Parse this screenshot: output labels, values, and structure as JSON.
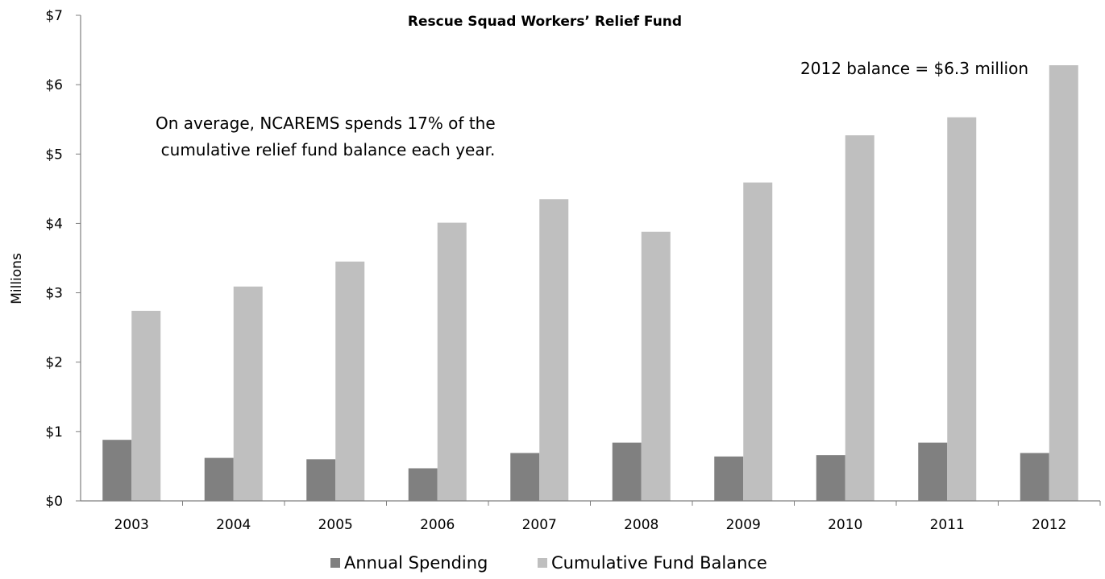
{
  "chart_data": {
    "type": "bar",
    "title": "Rescue Squad Workers’ Relief Fund",
    "xlabel": "",
    "ylabel": "Millions",
    "ylim": [
      0,
      7
    ],
    "y_tick_values": [
      0,
      1,
      2,
      3,
      4,
      5,
      6,
      7
    ],
    "y_tick_labels": [
      "$0",
      "$1",
      "$2",
      "$3",
      "$4",
      "$5",
      "$6",
      "$7"
    ],
    "categories": [
      "2003",
      "2004",
      "2005",
      "2006",
      "2007",
      "2008",
      "2009",
      "2010",
      "2011",
      "2012"
    ],
    "series": [
      {
        "name": "Annual Spending",
        "color": "#808080",
        "values": [
          0.88,
          0.62,
          0.6,
          0.47,
          0.69,
          0.84,
          0.64,
          0.66,
          0.84,
          0.69
        ]
      },
      {
        "name": "Cumulative Fund Balance",
        "color": "#bfbfbf",
        "values": [
          2.74,
          3.09,
          3.45,
          4.01,
          4.35,
          3.88,
          4.59,
          5.27,
          5.53,
          6.28
        ]
      }
    ],
    "annotations": [
      {
        "lines": [
          "2012 balance = $6.3 million"
        ]
      },
      {
        "lines": [
          "On average, NCAREMS spends 17% of the",
          "cumulative relief fund balance each year."
        ]
      }
    ],
    "grid": false,
    "legend_position": "bottom"
  }
}
